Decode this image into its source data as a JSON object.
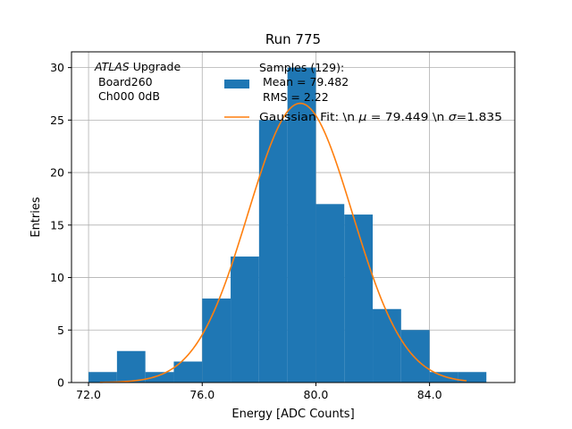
{
  "chart_data": {
    "type": "bar",
    "title": "Run 775",
    "xlabel": "Energy [ADC Counts]",
    "ylabel": "Entries",
    "xlim": [
      71.4,
      87.0
    ],
    "ylim": [
      0,
      31.5
    ],
    "x_ticks": [
      72.0,
      76.0,
      80.0,
      84.0
    ],
    "x_tick_labels": [
      "72.0",
      "76.0",
      "80.0",
      "84.0"
    ],
    "y_ticks": [
      0,
      5,
      10,
      15,
      20,
      25,
      30
    ],
    "y_tick_labels": [
      "0",
      "5",
      "10",
      "15",
      "20",
      "25",
      "30"
    ],
    "grid": true,
    "bin_edges": [
      72.0,
      73.0,
      74.0,
      75.0,
      76.0,
      77.0,
      78.0,
      79.0,
      80.0,
      81.0,
      82.0,
      83.0,
      84.0,
      85.0,
      86.0
    ],
    "counts": [
      1,
      3,
      1,
      2,
      8,
      12,
      25,
      30,
      17,
      16,
      7,
      5,
      1,
      1
    ],
    "fit": {
      "mu": 79.449,
      "sigma": 1.835,
      "x_range": [
        72.4,
        85.3
      ],
      "amplitude": 26.6
    },
    "annotation": {
      "italic": "ATLAS",
      "rest": " Upgrade",
      "line2": "Board260",
      "line3": "Ch000 0dB"
    },
    "legend": {
      "position": "top-right",
      "histogram_label": [
        "Samples (129):",
        "Mean = 79.482",
        "RMS = 2.22"
      ],
      "fit_label": {
        "before_mu": "Gaussian Fit: \\n ",
        "mu_symbol": "μ",
        "mid": " = 79.449 \\n ",
        "sigma_symbol": "σ",
        "after": "=1.835"
      }
    },
    "colors": {
      "bars": "#1f77b4",
      "fit": "#ff7f0e",
      "grid": "#b0b0b0"
    }
  }
}
